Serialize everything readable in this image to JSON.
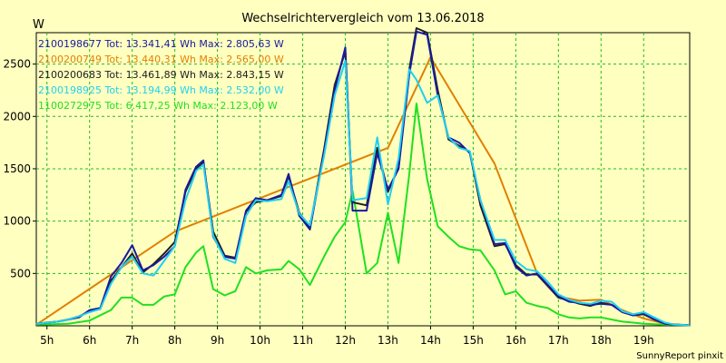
{
  "chart_data": {
    "type": "line",
    "title": "Wechselrichtervergleich vom 13.06.2018",
    "y_unit": "W",
    "ylim": [
      0,
      2800
    ],
    "yticks": [
      500,
      1000,
      1500,
      2000,
      2500
    ],
    "ytick_labels": [
      "500",
      "1000",
      "1500",
      "2000",
      "2500"
    ],
    "xlim": [
      4.75,
      20.08
    ],
    "xticks": [
      5,
      6,
      7,
      8,
      9,
      10,
      11,
      12,
      13,
      14,
      15,
      16,
      17,
      18,
      19
    ],
    "xtick_labels": [
      "5h",
      "6h",
      "7h",
      "8h",
      "9h",
      "10h",
      "11h",
      "12h",
      "13h",
      "14h",
      "15h",
      "16h",
      "17h",
      "18h",
      "19h"
    ],
    "grid": true,
    "legend_position": "top-left",
    "footer": "SunnyReport pinxit",
    "series": [
      {
        "label_id": "2100198677",
        "label_text": "Tot: 13.341,41 Wh Max: 2.805,63 W",
        "color": "#1a1aa0",
        "x": [
          4.75,
          5.25,
          5.5,
          5.75,
          6.0,
          6.25,
          6.5,
          6.75,
          7.0,
          7.25,
          7.5,
          7.75,
          8.0,
          8.25,
          8.5,
          8.67,
          8.9,
          9.17,
          9.42,
          9.67,
          9.9,
          10.17,
          10.5,
          10.67,
          10.92,
          11.17,
          11.5,
          11.75,
          12.0,
          12.17,
          12.5,
          12.75,
          13.0,
          13.25,
          13.5,
          13.67,
          13.92,
          14.17,
          14.42,
          14.67,
          14.92,
          15.17,
          15.5,
          15.75,
          16.0,
          16.25,
          16.5,
          16.75,
          17.0,
          17.25,
          17.5,
          17.75,
          18.0,
          18.25,
          18.5,
          18.75,
          19.0,
          19.25,
          19.5,
          19.75,
          20.08
        ],
        "y": [
          20,
          40,
          60,
          80,
          150,
          170,
          470,
          600,
          770,
          530,
          580,
          660,
          760,
          1300,
          1520,
          1580,
          850,
          660,
          640,
          1100,
          1220,
          1200,
          1250,
          1450,
          1050,
          920,
          1650,
          2250,
          2660,
          1100,
          1100,
          1650,
          1300,
          1500,
          2400,
          2810,
          2780,
          2200,
          1800,
          1750,
          1650,
          1200,
          780,
          790,
          560,
          480,
          500,
          390,
          280,
          230,
          220,
          200,
          210,
          200,
          130,
          100,
          120,
          60,
          20,
          10,
          5
        ]
      },
      {
        "label_id": "2100200749",
        "label_text": "Tot: 13.440,31 Wh Max: 2.565,00 W",
        "color": "#e08000",
        "x": [
          4.75,
          8.0,
          13.0,
          14.0,
          15.5,
          16.5,
          17.0,
          17.5,
          18.0,
          18.5,
          19.0,
          19.5,
          20.08
        ],
        "y": [
          10,
          900,
          1700,
          2565,
          1550,
          500,
          280,
          240,
          250,
          150,
          70,
          20,
          5
        ]
      },
      {
        "label_id": "2100200683",
        "label_text": "Tot: 13.461,89 Wh Max: 2.843,15 W",
        "color": "#202020",
        "x": [
          4.75,
          5.25,
          5.5,
          5.75,
          6.0,
          6.25,
          6.5,
          6.75,
          7.0,
          7.25,
          7.5,
          7.75,
          8.0,
          8.25,
          8.5,
          8.67,
          8.9,
          9.17,
          9.42,
          9.67,
          9.9,
          10.17,
          10.5,
          10.67,
          10.92,
          11.17,
          11.5,
          11.75,
          12.0,
          12.17,
          12.5,
          12.75,
          13.0,
          13.25,
          13.5,
          13.67,
          13.92,
          14.17,
          14.42,
          14.67,
          14.92,
          15.17,
          15.5,
          15.75,
          16.0,
          16.25,
          16.5,
          16.75,
          17.0,
          17.25,
          17.5,
          17.75,
          18.0,
          18.25,
          18.5,
          18.75,
          19.0,
          19.25,
          19.5,
          19.75,
          20.08
        ],
        "y": [
          20,
          40,
          60,
          90,
          140,
          160,
          430,
          560,
          690,
          510,
          590,
          690,
          800,
          1280,
          1500,
          1560,
          900,
          670,
          650,
          1090,
          1180,
          1200,
          1240,
          1430,
          1080,
          940,
          1680,
          2300,
          2620,
          1180,
          1150,
          1700,
          1280,
          1510,
          2450,
          2843,
          2800,
          2250,
          1780,
          1720,
          1660,
          1150,
          760,
          780,
          580,
          490,
          490,
          380,
          270,
          240,
          210,
          190,
          220,
          200,
          140,
          100,
          110,
          60,
          20,
          10,
          5
        ]
      },
      {
        "label_id": "2100198925",
        "label_text": "Tot: 13.194,99 Wh Max: 2.532,00 W",
        "color": "#20d0f0",
        "x": [
          4.75,
          5.25,
          5.5,
          5.75,
          6.0,
          6.25,
          6.5,
          6.75,
          7.0,
          7.25,
          7.5,
          7.75,
          8.0,
          8.25,
          8.5,
          8.67,
          8.9,
          9.17,
          9.42,
          9.67,
          9.9,
          10.17,
          10.5,
          10.67,
          10.92,
          11.17,
          11.5,
          11.75,
          12.0,
          12.17,
          12.5,
          12.75,
          13.0,
          13.25,
          13.5,
          13.67,
          13.92,
          14.17,
          14.42,
          14.67,
          14.92,
          15.17,
          15.5,
          15.75,
          16.0,
          16.25,
          16.5,
          16.75,
          17.0,
          17.25,
          17.5,
          17.75,
          18.0,
          18.25,
          18.5,
          18.75,
          19.0,
          19.25,
          19.5,
          19.75,
          20.08
        ],
        "y": [
          20,
          40,
          60,
          90,
          130,
          160,
          400,
          560,
          660,
          500,
          480,
          620,
          760,
          1200,
          1480,
          1540,
          860,
          640,
          600,
          1050,
          1200,
          1190,
          1210,
          1380,
          1070,
          960,
          1620,
          2200,
          2532,
          1200,
          1220,
          1800,
          1160,
          1600,
          2450,
          2350,
          2130,
          2200,
          1800,
          1700,
          1670,
          1200,
          820,
          820,
          620,
          540,
          520,
          420,
          300,
          250,
          220,
          210,
          240,
          230,
          140,
          110,
          130,
          80,
          30,
          10,
          5
        ]
      },
      {
        "label_id": "1100272975",
        "label_text": "Tot: 6.417,25 Wh Max: 2.123,00 W",
        "color": "#20e020",
        "x": [
          4.75,
          5.5,
          6.0,
          6.5,
          6.75,
          7.0,
          7.25,
          7.5,
          7.75,
          8.0,
          8.25,
          8.5,
          8.67,
          8.9,
          9.17,
          9.42,
          9.67,
          9.9,
          10.17,
          10.5,
          10.67,
          10.92,
          11.17,
          11.5,
          11.75,
          12.0,
          12.17,
          12.5,
          12.75,
          13.0,
          13.25,
          13.5,
          13.67,
          13.92,
          14.17,
          14.42,
          14.67,
          14.92,
          15.17,
          15.5,
          15.75,
          16.0,
          16.25,
          16.5,
          16.75,
          17.0,
          17.25,
          17.5,
          17.75,
          18.0,
          18.25,
          18.5,
          18.75,
          19.0,
          19.5,
          20.08
        ],
        "y": [
          10,
          20,
          50,
          150,
          270,
          270,
          200,
          200,
          280,
          300,
          560,
          700,
          760,
          350,
          290,
          330,
          560,
          500,
          530,
          540,
          620,
          540,
          390,
          660,
          850,
          990,
          1290,
          500,
          600,
          1080,
          600,
          1450,
          2123,
          1400,
          950,
          850,
          760,
          730,
          720,
          530,
          300,
          330,
          220,
          190,
          170,
          110,
          80,
          70,
          80,
          80,
          60,
          40,
          30,
          20,
          10,
          5
        ]
      }
    ]
  }
}
